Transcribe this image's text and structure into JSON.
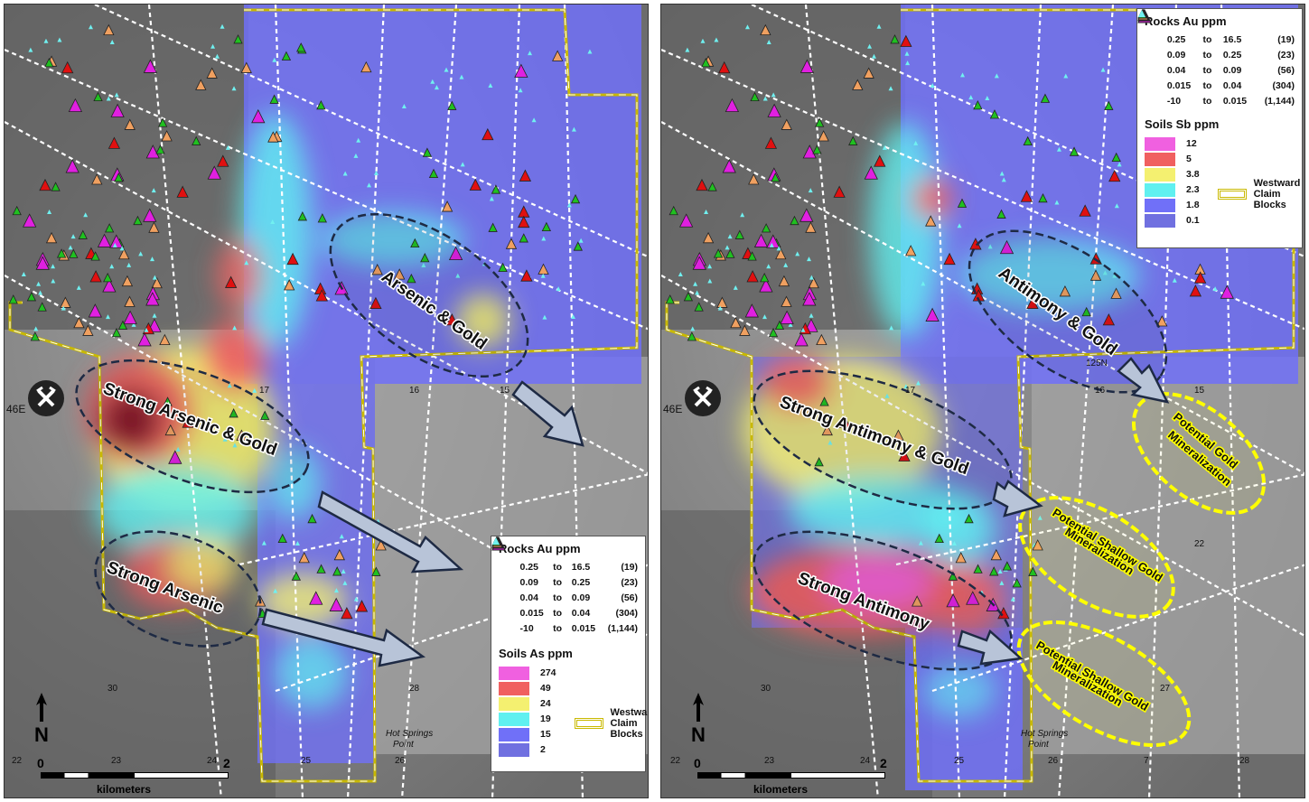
{
  "colors": {
    "soil_pink": "#f060e0",
    "soil_red": "#f06060",
    "soil_yellow": "#f4f070",
    "soil_cyan": "#60f0f0",
    "soil_blue": "#7070f8",
    "soil_violet": "#7070e0",
    "claim_yellow": "#c9b900",
    "magenta_triangle": "#e020e0",
    "red_triangle": "#e01010",
    "orange_triangle": "#f0a060",
    "green_triangle": "#20c020",
    "cyan_point": "#70f0f0",
    "ellipse_stroke": "#1e2a44",
    "highlight_yellow": "#ffff00"
  },
  "left_map": {
    "annotations": [
      "Arsenic & Gold",
      "Strong Arsenic & Gold",
      "Strong Arsenic"
    ],
    "legend": {
      "rocks_title": "Rocks Au ppm",
      "rocks": [
        {
          "symbol": "magenta-triangle",
          "lo": "0.25",
          "to": "to",
          "hi": "16.5",
          "count": "(19)"
        },
        {
          "symbol": "red-triangle",
          "lo": "0.09",
          "to": "to",
          "hi": "0.25",
          "count": "(23)"
        },
        {
          "symbol": "orange-triangle",
          "lo": "0.04",
          "to": "to",
          "hi": "0.09",
          "count": "(56)"
        },
        {
          "symbol": "green-triangle",
          "lo": "0.015",
          "to": "to",
          "hi": "0.04",
          "count": "(304)"
        },
        {
          "symbol": "cyan-point",
          "lo": "-10",
          "to": "to",
          "hi": "0.015",
          "count": "(1,144)"
        }
      ],
      "soils_title": "Soils As ppm",
      "soils": [
        "274",
        "49",
        "24",
        "19",
        "15",
        "2"
      ],
      "claim_label": [
        "Westward",
        "Claim",
        "Blocks"
      ]
    },
    "grid_labels": [
      "22",
      "23",
      "24",
      "25",
      "26",
      "30",
      "28",
      "16",
      "15",
      "17",
      "46E"
    ],
    "place_labels": [
      "Hot Springs",
      "Point"
    ]
  },
  "right_map": {
    "annotations": [
      "Antimony & Gold",
      "Strong Antimony & Gold",
      "Strong Antimony"
    ],
    "targets": [
      [
        "Potential Gold",
        "Mineralization"
      ],
      [
        "Potential Shallow Gold",
        "Mineralization"
      ],
      [
        "Potential Shallow Gold",
        "Mineralization"
      ]
    ],
    "legend": {
      "rocks_title": "Rocks Au ppm",
      "rocks": [
        {
          "symbol": "magenta-triangle",
          "lo": "0.25",
          "to": "to",
          "hi": "16.5",
          "count": "(19)"
        },
        {
          "symbol": "red-triangle",
          "lo": "0.09",
          "to": "to",
          "hi": "0.25",
          "count": "(23)"
        },
        {
          "symbol": "orange-triangle",
          "lo": "0.04",
          "to": "to",
          "hi": "0.09",
          "count": "(56)"
        },
        {
          "symbol": "green-triangle",
          "lo": "0.015",
          "to": "to",
          "hi": "0.04",
          "count": "(304)"
        },
        {
          "symbol": "cyan-point",
          "lo": "-10",
          "to": "to",
          "hi": "0.015",
          "count": "(1,144)"
        }
      ],
      "soils_title": "Soils Sb ppm",
      "soils": [
        "12",
        "5",
        "3.8",
        "2.3",
        "1.8",
        "0.1"
      ],
      "claim_label": [
        "Westward",
        "Claim",
        "Blocks"
      ]
    },
    "grid_labels": [
      "22",
      "23",
      "24",
      "25",
      "26",
      "7",
      "28",
      "30",
      "27",
      "15",
      "16",
      "17",
      "22",
      "46E",
      "125N"
    ],
    "place_labels": [
      "Hot Springs",
      "Point"
    ]
  },
  "scale": {
    "ticks": [
      "0",
      "2"
    ],
    "unit": "kilometers"
  }
}
